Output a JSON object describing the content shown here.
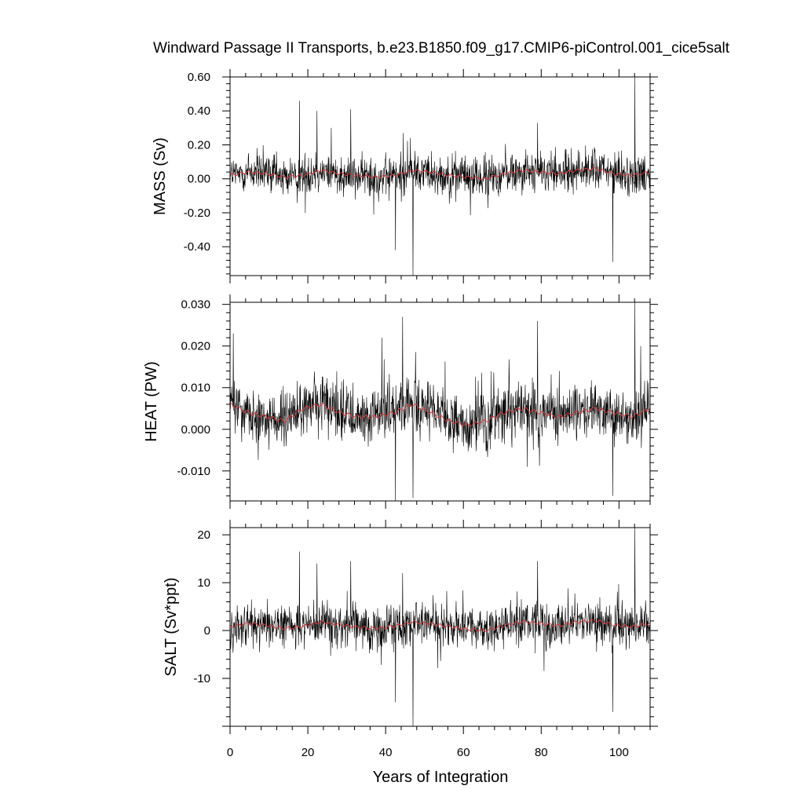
{
  "chart_data": [
    {
      "type": "line",
      "title": "Windward Passage II Transports, b.e23.B1850.f09_g17.CMIP6-piControl.001_cice5salt",
      "ylabel": "MASS (Sv)",
      "xlim": [
        0,
        108
      ],
      "ylim": [
        -0.57,
        0.6
      ],
      "yticks": [
        -0.4,
        -0.2,
        0.0,
        0.2,
        0.4,
        0.6
      ],
      "ytick_labels": [
        "-0.40",
        "-0.20",
        "0.00",
        "0.20",
        "0.40",
        "0.60"
      ],
      "raw_color": "#000000",
      "smooth_color": "#d9383a",
      "raw_amplitude": 0.1,
      "smooth_pattern": [
        0.02,
        0.04,
        0.03,
        0.01,
        0.02,
        0.05,
        0.03,
        0.02,
        0.01,
        0.02,
        0.05,
        0.04,
        0.02,
        0.01,
        0.0,
        0.03,
        0.05,
        0.04,
        0.03,
        0.05,
        0.06,
        0.03,
        0.02,
        0.04
      ],
      "spikes": [
        [
          17.8,
          0.46
        ],
        [
          22.3,
          0.4
        ],
        [
          31.0,
          0.41
        ],
        [
          42.5,
          -0.42
        ],
        [
          47.0,
          -0.57
        ],
        [
          104.0,
          0.6
        ],
        [
          98.3,
          -0.49
        ],
        [
          26.0,
          0.3
        ],
        [
          44.5,
          0.27
        ],
        [
          79.0,
          0.33
        ]
      ]
    },
    {
      "type": "line",
      "ylabel": "HEAT (PW)",
      "xlim": [
        0,
        108
      ],
      "ylim": [
        -0.0172,
        0.0305
      ],
      "yticks": [
        -0.01,
        0.0,
        0.01,
        0.02,
        0.03
      ],
      "ytick_labels": [
        "-0.010",
        "0.000",
        "0.010",
        "0.020",
        "0.030"
      ],
      "raw_color": "#000000",
      "smooth_color": "#d9383a",
      "raw_amplitude": 0.0055,
      "smooth_pattern": [
        0.006,
        0.004,
        0.003,
        0.002,
        0.005,
        0.006,
        0.004,
        0.003,
        0.003,
        0.004,
        0.006,
        0.004,
        0.002,
        0.001,
        0.002,
        0.004,
        0.005,
        0.004,
        0.003,
        0.004,
        0.005,
        0.004,
        0.003,
        0.005
      ],
      "spikes": [
        [
          44.3,
          0.027
        ],
        [
          79.0,
          0.026
        ],
        [
          104.0,
          0.0305
        ],
        [
          42.5,
          -0.0172
        ],
        [
          47.0,
          -0.0165
        ],
        [
          98.3,
          -0.016
        ],
        [
          0.8,
          0.023
        ],
        [
          39.0,
          0.022
        ],
        [
          105.5,
          0.02
        ]
      ]
    },
    {
      "type": "line",
      "ylabel": "SALT (Sv*ppt)",
      "xlabel": "Years of Integration",
      "xlim": [
        0,
        108
      ],
      "ylim": [
        -20,
        21.5
      ],
      "xticks": [
        0,
        20,
        40,
        60,
        80,
        100
      ],
      "xtick_labels": [
        "0",
        "20",
        "40",
        "60",
        "80",
        "100"
      ],
      "yticks": [
        -10,
        0,
        10,
        20
      ],
      "ytick_labels": [
        "-10",
        "0",
        "10",
        "20"
      ],
      "raw_color": "#000000",
      "smooth_color": "#d9383a",
      "raw_amplitude": 3.6,
      "smooth_pattern": [
        0.8,
        1.5,
        1.1,
        0.4,
        0.9,
        1.8,
        1.2,
        0.7,
        0.4,
        0.9,
        1.8,
        1.4,
        0.8,
        0.3,
        0.0,
        1.0,
        1.9,
        1.5,
        1.0,
        1.8,
        2.1,
        1.2,
        0.8,
        1.5
      ],
      "spikes": [
        [
          17.8,
          16.5
        ],
        [
          22.3,
          14.0
        ],
        [
          31.0,
          14.5
        ],
        [
          42.5,
          -15.0
        ],
        [
          47.0,
          -20.0
        ],
        [
          104.0,
          21.5
        ],
        [
          98.3,
          -17.0
        ],
        [
          79.0,
          14.5
        ],
        [
          44.3,
          12.0
        ]
      ]
    }
  ]
}
